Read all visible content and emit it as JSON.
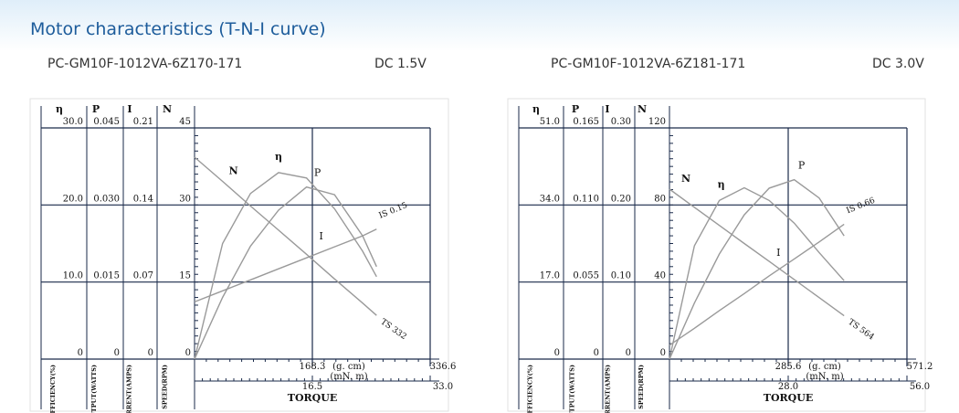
{
  "header": {
    "title": "Motor characteristics (T-N-I curve)"
  },
  "panels": [
    {
      "model": "PC-GM10F-1012VA-6Z170-171",
      "voltage": "DC 1.5V"
    },
    {
      "model": "PC-GM10F-1012VA-6Z181-171",
      "voltage": "DC 3.0V"
    }
  ],
  "chart_data": [
    {
      "type": "motor-curve",
      "axes": [
        {
          "label": "η",
          "title": "EFFICIENCY(%)",
          "ylim": [
            0,
            30
          ],
          "yticks": [
            0,
            {
              "value": 10,
              "label": "10.0"
            },
            {
              "value": 20,
              "label": "20.0"
            },
            {
              "value": 30,
              "label": "30.0"
            }
          ]
        },
        {
          "label": "P",
          "title": "OUTPUT(WATTS)",
          "ylim": [
            0,
            0.045
          ],
          "yticks": [
            0,
            0.015,
            {
              "value": 0.03,
              "label": "0.030"
            },
            0.045
          ]
        },
        {
          "label": "I",
          "title": "CURRENT(AMPS)",
          "ylim": [
            0,
            0.21
          ],
          "yticks": [
            0,
            0.07,
            0.14,
            0.21
          ]
        },
        {
          "label": "N",
          "title": "SPEED(RPM)",
          "ylim": [
            0,
            45
          ],
          "yticks": [
            0,
            15,
            30,
            45
          ]
        }
      ],
      "x": [
        0,
        40,
        80,
        120,
        160,
        200,
        240,
        260
      ],
      "xlim": [
        0,
        336.6
      ],
      "xticks": [
        168.3,
        336.6
      ],
      "xunit": "(g. cm)",
      "x2lim": [
        0,
        33
      ],
      "x2ticks": [
        16.5,
        {
          "value": 33,
          "label": "33.0"
        }
      ],
      "x2unit": "(mN. m)",
      "xlabel": "TORQUE",
      "series": [
        {
          "name": "N",
          "axis": 3,
          "color": "#9a9a9a",
          "values": [
            39.3,
            34.6,
            29.8,
            25.1,
            20.4,
            15.6,
            10.9,
            8.5
          ]
        },
        {
          "name": "η",
          "axis": 0,
          "color": "#9a9a9a",
          "values": [
            0,
            15,
            21.5,
            24.2,
            23.5,
            19.5,
            14,
            10.7
          ]
        },
        {
          "name": "P",
          "axis": 1,
          "color": "#9a9a9a",
          "values": [
            0,
            0.012,
            0.022,
            0.029,
            0.0335,
            0.032,
            0.024,
            0.018
          ]
        },
        {
          "name": "I",
          "axis": 2,
          "color": "#9a9a9a",
          "values": [
            0.052,
            0.062,
            0.072,
            0.082,
            0.092,
            0.102,
            0.112,
            0.118
          ]
        }
      ],
      "annotations": [
        "IS 0.15",
        "TS 332"
      ]
    },
    {
      "type": "motor-curve",
      "axes": [
        {
          "label": "η",
          "title": "EFFICIENCY(%)",
          "ylim": [
            0,
            51
          ],
          "yticks": [
            0,
            {
              "value": 17,
              "label": "17.0"
            },
            {
              "value": 34,
              "label": "34.0"
            },
            {
              "value": 51,
              "label": "51.0"
            }
          ]
        },
        {
          "label": "P",
          "title": "OUTPUT(WATTS)",
          "ylim": [
            0,
            0.165
          ],
          "yticks": [
            0,
            0.055,
            {
              "value": 0.11,
              "label": "0.110"
            },
            0.165
          ]
        },
        {
          "label": "I",
          "title": "CURRENT(AMPS)",
          "ylim": [
            0,
            0.3
          ],
          "yticks": [
            0,
            {
              "value": 0.1,
              "label": "0.10"
            },
            {
              "value": 0.2,
              "label": "0.20"
            },
            {
              "value": 0.3,
              "label": "0.30"
            }
          ]
        },
        {
          "label": "N",
          "title": "SPEED(RPM)",
          "ylim": [
            0,
            120
          ],
          "yticks": [
            0,
            40,
            80,
            120
          ]
        }
      ],
      "x": [
        0,
        60,
        120,
        180,
        240,
        300,
        360,
        420
      ],
      "xlim": [
        0,
        571.2
      ],
      "xticks": [
        285.6,
        571.2
      ],
      "xunit": "(g. cm)",
      "x2lim": [
        0,
        56
      ],
      "x2ticks": [
        {
          "value": 28,
          "label": "28.0"
        },
        {
          "value": 56,
          "label": "56.0"
        }
      ],
      "x2unit": "(mN. m)",
      "xlabel": "TORQUE",
      "series": [
        {
          "name": "N",
          "axis": 3,
          "color": "#9a9a9a",
          "values": [
            88.2,
            78.8,
            69.4,
            60.0,
            50.7,
            41.3,
            31.9,
            22.5
          ]
        },
        {
          "name": "η",
          "axis": 0,
          "color": "#9a9a9a",
          "values": [
            0,
            25,
            35,
            37.8,
            35,
            30,
            23.5,
            17.3
          ]
        },
        {
          "name": "P",
          "axis": 1,
          "color": "#9a9a9a",
          "values": [
            0,
            0.04,
            0.075,
            0.103,
            0.122,
            0.128,
            0.115,
            0.088
          ]
        },
        {
          "name": "I",
          "axis": 2,
          "color": "#9a9a9a",
          "values": [
            0.018,
            0.04,
            0.063,
            0.085,
            0.108,
            0.13,
            0.152,
            0.175
          ]
        }
      ],
      "annotations": [
        "IS 0.66",
        "TS 564"
      ]
    }
  ]
}
